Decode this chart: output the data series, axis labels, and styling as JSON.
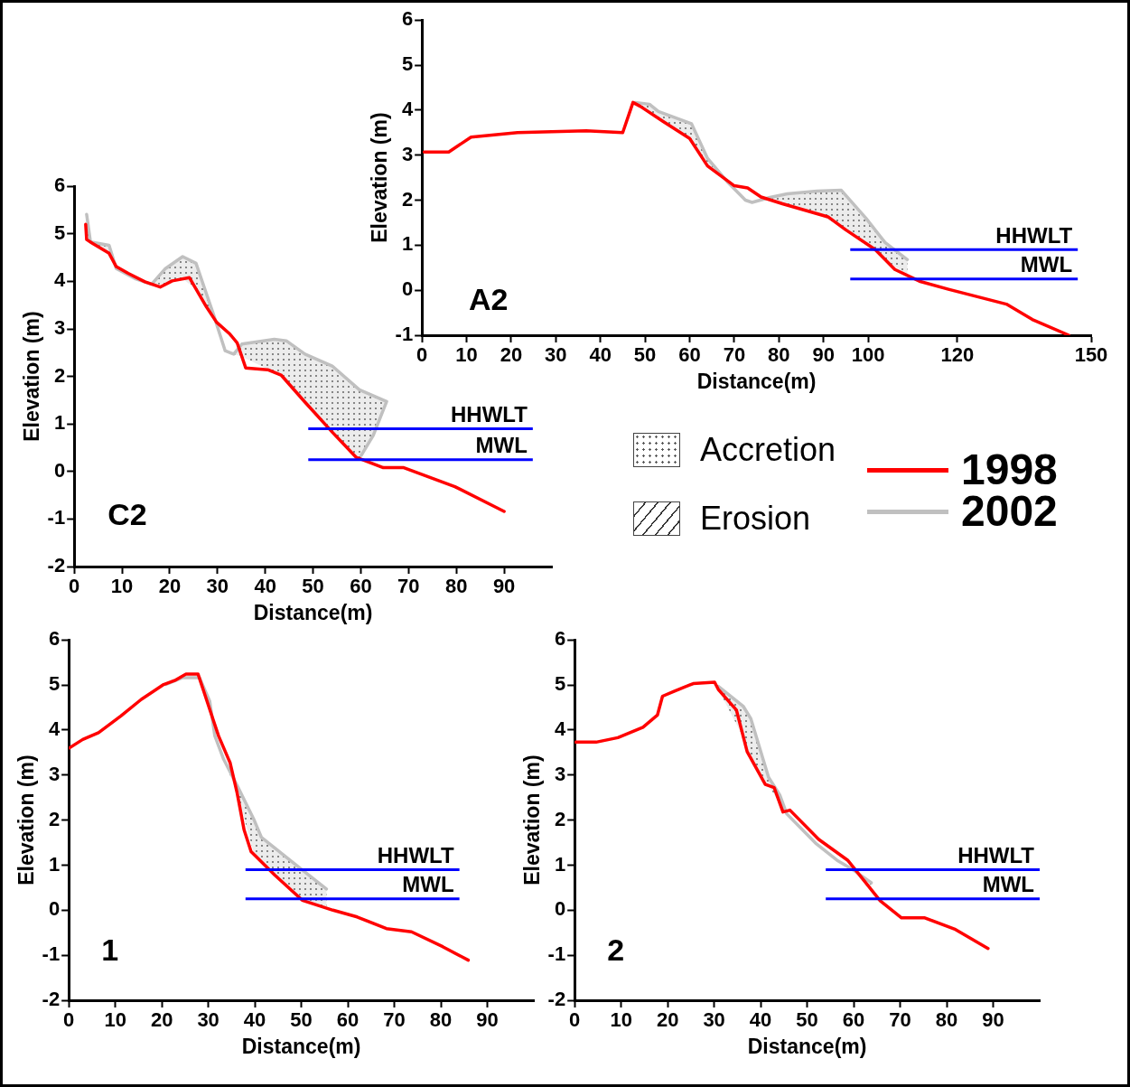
{
  "chart_data": [
    {
      "type": "line",
      "title": "A2",
      "xlabel": "Distance(m)",
      "ylabel": "Elevation (m)",
      "xlim": [
        0,
        150
      ],
      "ylim": [
        -1,
        6
      ],
      "xticks": [
        0,
        10,
        20,
        30,
        40,
        50,
        60,
        70,
        80,
        90,
        100,
        120,
        150
      ],
      "yticks": [
        -1,
        0,
        1,
        2,
        3,
        4,
        5,
        6
      ],
      "legend": "bottom right",
      "series": [
        {
          "name": "1998",
          "color": "#ff0000",
          "x": [
            0.5,
            6,
            11,
            21.4,
            36.8,
            45,
            47.3,
            49,
            54,
            60,
            64,
            70,
            73,
            76,
            80.8,
            91,
            95,
            101.6,
            106,
            111.5,
            118,
            124.7,
            131,
            136.8,
            145
          ],
          "values": [
            3.07,
            3.07,
            3.4,
            3.5,
            3.54,
            3.5,
            4.17,
            4.08,
            3.75,
            3.37,
            2.76,
            2.32,
            2.27,
            2.07,
            1.92,
            1.63,
            1.34,
            0.9,
            0.46,
            0.2,
            0.02,
            -0.15,
            -0.31,
            -0.65,
            -1
          ]
        },
        {
          "name": "2002",
          "color": "#c0c0c0",
          "x": [
            47.8,
            51,
            53,
            60.4,
            64,
            68.7,
            72.5,
            74,
            78,
            81.9,
            88.5,
            94,
            99.5,
            103.8,
            108.8
          ],
          "values": [
            4.17,
            4.13,
            3.97,
            3.7,
            2.93,
            2.38,
            2.0,
            1.95,
            2.06,
            2.14,
            2.2,
            2.22,
            1.6,
            1.06,
            0.68
          ]
        }
      ],
      "ref_lines": [
        {
          "axis": "y",
          "value": 0.9,
          "label": "HHWLT",
          "color": "#0000ff"
        },
        {
          "axis": "y",
          "value": 0.25,
          "label": "MWL",
          "color": "#0000ff"
        }
      ]
    },
    {
      "type": "line",
      "title": "C2",
      "xlabel": "Distance(m)",
      "ylabel": "Elevation (m)",
      "xlim": [
        0,
        100
      ],
      "ylim": [
        -2,
        6
      ],
      "xticks": [
        0,
        10,
        20,
        30,
        40,
        50,
        60,
        70,
        80,
        90
      ],
      "yticks": [
        -2,
        -1,
        0,
        1,
        2,
        3,
        4,
        5,
        6
      ],
      "series": [
        {
          "color": "#ff0000",
          "x": [
            2.4,
            2.6,
            3.8,
            7.3,
            8.8,
            11.3,
            14.8,
            18,
            20.5,
            24.1,
            27.7,
            29.8,
            32.6,
            34.1,
            35.9,
            40.5,
            43.3,
            48.3,
            54,
            59,
            64.7,
            69,
            79.7,
            90
          ],
          "values": [
            5.2,
            4.88,
            4.8,
            4.59,
            4.31,
            4.17,
            3.99,
            3.88,
            4.01,
            4.08,
            3.46,
            3.14,
            2.89,
            2.71,
            2.18,
            2.14,
            2.03,
            1.46,
            0.83,
            0.3,
            0.08,
            0.08,
            -0.32,
            -0.84
          ]
        },
        {
          "color": "#c0c0c0",
          "x": [
            2.6,
            3.4,
            7.3,
            8.8,
            12.7,
            16.2,
            19.1,
            22.7,
            25.5,
            27.3,
            29.1,
            31.6,
            33.4,
            35.1,
            41.9,
            44.4,
            48.3,
            54,
            59.7,
            65.4,
            62.6,
            60.1
          ],
          "values": [
            5.41,
            4.83,
            4.76,
            4.27,
            4.06,
            3.94,
            4.27,
            4.52,
            4.38,
            3.85,
            3.32,
            2.54,
            2.47,
            2.68,
            2.78,
            2.75,
            2.47,
            2.22,
            1.72,
            1.47,
            0.76,
            0.34
          ]
        }
      ],
      "ref_lines": [
        {
          "axis": "y",
          "value": 0.9,
          "label": "HHWLT",
          "color": "#0000ff"
        },
        {
          "axis": "y",
          "value": 0.25,
          "label": "MWL",
          "color": "#0000ff"
        }
      ]
    },
    {
      "type": "line",
      "title": "1",
      "xlabel": "Distance(m)",
      "ylabel": "Elevation (m)",
      "xlim": [
        0,
        100
      ],
      "ylim": [
        -2,
        6
      ],
      "xticks": [
        0,
        10,
        20,
        30,
        40,
        50,
        60,
        70,
        80,
        90
      ],
      "yticks": [
        -2,
        -1,
        0,
        1,
        2,
        3,
        4,
        5,
        6
      ],
      "series": [
        {
          "color": "#ff0000",
          "x": [
            0.1,
            3,
            6.4,
            11.2,
            15.6,
            20.4,
            23,
            25.2,
            27.8,
            30.3,
            32.2,
            34.7,
            36.2,
            37.7,
            39.2,
            44.3,
            50.2,
            56.8,
            62,
            68.3,
            73.7,
            80.4,
            85.9
          ],
          "values": [
            3.6,
            3.79,
            3.94,
            4.31,
            4.68,
            5.01,
            5.11,
            5.24,
            5.24,
            4.46,
            3.87,
            3.27,
            2.6,
            1.78,
            1.3,
            0.78,
            0.22,
            0.0,
            -0.15,
            -0.41,
            -0.48,
            -0.81,
            -1.11
          ]
        },
        {
          "color": "#c0c0c0",
          "x": [
            20.8,
            24.4,
            28.1,
            30.3,
            31.4,
            33.3,
            36.2,
            39.9,
            41.4,
            49.5,
            55.4
          ],
          "values": [
            5.01,
            5.16,
            5.16,
            4.64,
            3.87,
            3.35,
            2.77,
            1.99,
            1.62,
            0.95,
            0.47
          ]
        }
      ],
      "ref_lines": [
        {
          "axis": "y",
          "value": 0.9,
          "label": "HHWLT",
          "color": "#0000ff"
        },
        {
          "axis": "y",
          "value": 0.25,
          "label": "MWL",
          "color": "#0000ff"
        }
      ]
    },
    {
      "type": "line",
      "title": "2",
      "xlabel": "Distance(m)",
      "ylabel": "Elevation (m)",
      "xlim": [
        0,
        100
      ],
      "ylim": [
        -2,
        6
      ],
      "xticks": [
        0,
        10,
        20,
        30,
        40,
        50,
        60,
        70,
        80,
        90
      ],
      "yticks": [
        -2,
        -1,
        0,
        1,
        2,
        3,
        4,
        5,
        6
      ],
      "series": [
        {
          "color": "#ff0000",
          "x": [
            0.2,
            4.6,
            9.3,
            14.7,
            17.8,
            18.9,
            21.6,
            25.5,
            30.1,
            30.9,
            34.8,
            37.1,
            41,
            42.9,
            44.8,
            46.3,
            52.5,
            58.7,
            65.7,
            70.3,
            75.3,
            81.9,
            88.9
          ],
          "values": [
            3.73,
            3.73,
            3.83,
            4.06,
            4.33,
            4.75,
            4.87,
            5.03,
            5.06,
            4.9,
            4.44,
            3.52,
            2.79,
            2.72,
            2.18,
            2.22,
            1.57,
            1.11,
            0.21,
            -0.17,
            -0.17,
            -0.43,
            -0.85
          ]
        },
        {
          "color": "#c0c0c0",
          "x": [
            30.9,
            36.3,
            37.9,
            41.7,
            44.1,
            45.6,
            51.8,
            56.4,
            59.5,
            63.8
          ],
          "values": [
            4.97,
            4.52,
            4.25,
            2.95,
            2.56,
            2.14,
            1.49,
            1.11,
            0.92,
            0.61
          ]
        }
      ],
      "ref_lines": [
        {
          "axis": "y",
          "value": 0.9,
          "label": "HHWLT",
          "color": "#0000ff"
        },
        {
          "axis": "y",
          "value": 0.25,
          "label": "MWL",
          "color": "#0000ff"
        }
      ]
    },
    {
      "type": "other",
      "annotations": [
        "Accretion",
        "Erosion"
      ]
    }
  ]
}
